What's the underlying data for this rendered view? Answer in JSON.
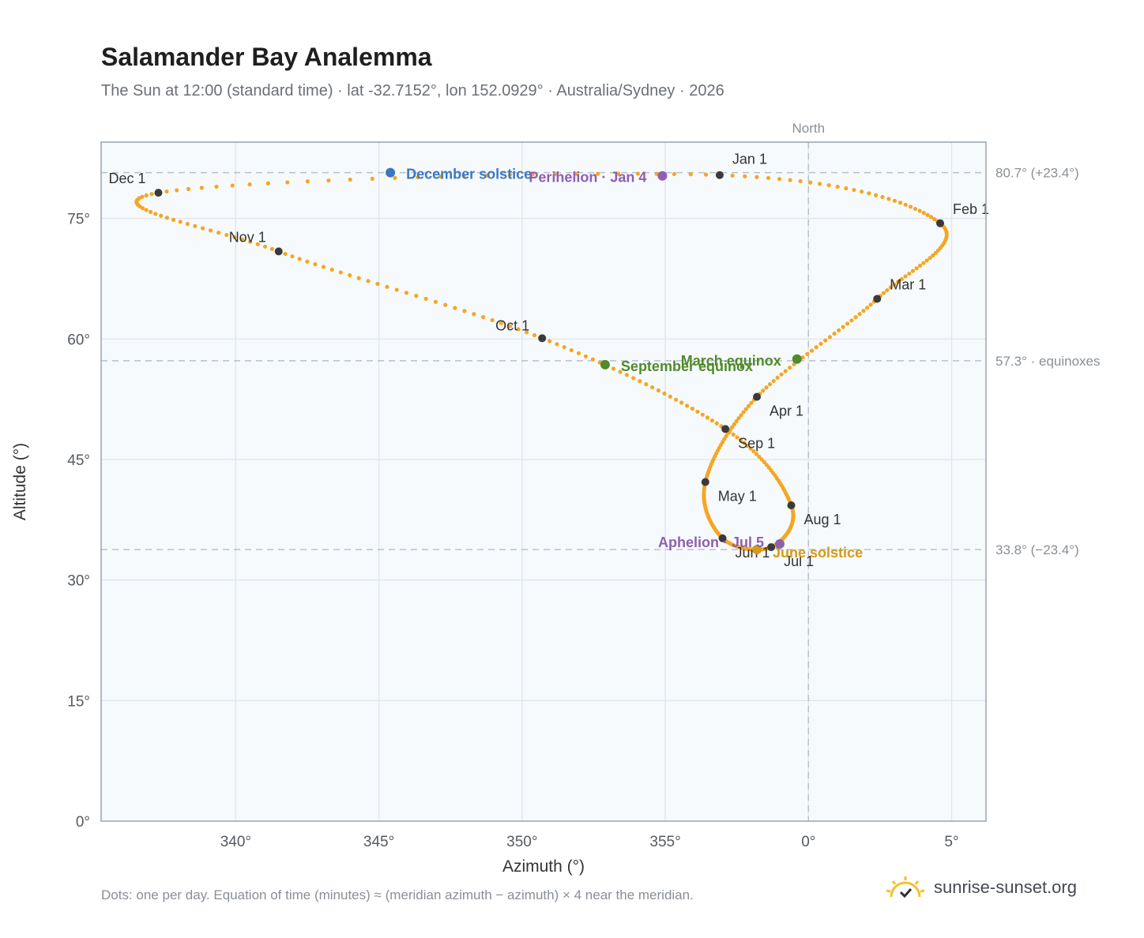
{
  "title": "Salamander Bay Analemma",
  "subtitle": "The Sun at 12:00 (standard time) · lat -32.7152°, lon 152.0929° · Australia/Sydney · 2026",
  "footnote": "Dots: one per day. Equation of time (minutes) ≈ (meridian azimuth − azimuth) × 4 near the meridian.",
  "brand": {
    "name": "sunrise-sunset.org",
    "icon": "sun-logo-icon",
    "color": "#f2c12e"
  },
  "colors": {
    "path": "#f5a623",
    "month_dot": "#3a3a3a",
    "equinox": "#4f8a2b",
    "december_solstice": "#3a78c3",
    "june_solstice": "#d49a1a",
    "perihelion_aphelion": "#8e5fb0",
    "plot_bg": "#f7fafd",
    "grid": "#e1e7ee",
    "ref_line": "#b7c1cb"
  },
  "chart_data": {
    "type": "scatter",
    "xlabel": "Azimuth (°)",
    "ylabel": "Altitude (°)",
    "x_ticks": [
      "340°",
      "345°",
      "350°",
      "355°",
      "0°",
      "5°"
    ],
    "x_tick_values": [
      340,
      345,
      350,
      355,
      360,
      365
    ],
    "y_ticks": [
      "0°",
      "15°",
      "30°",
      "45°",
      "60°",
      "75°"
    ],
    "y_tick_values": [
      0,
      15,
      30,
      45,
      60,
      75
    ],
    "xlim": [
      335.3,
      366.2
    ],
    "ylim": [
      0,
      84.5
    ],
    "grid": true,
    "meridian": {
      "azimuth": 360,
      "label": "North"
    },
    "reference_lines": [
      {
        "altitude": 80.7,
        "label": "80.7° (+23.4°)"
      },
      {
        "altitude": 57.3,
        "label": "57.3° · equinoxes"
      },
      {
        "altitude": 33.8,
        "label": "33.8° (−23.4°)"
      }
    ],
    "month_markers": [
      {
        "label": "Jan 1",
        "az": 356.9,
        "alt": 80.4
      },
      {
        "label": "Feb 1",
        "az": 364.6,
        "alt": 74.4
      },
      {
        "label": "Mar 1",
        "az": 362.4,
        "alt": 65.0
      },
      {
        "label": "Apr 1",
        "az": 358.2,
        "alt": 52.8
      },
      {
        "label": "May 1",
        "az": 356.4,
        "alt": 42.2
      },
      {
        "label": "Jun 1",
        "az": 357.0,
        "alt": 35.2
      },
      {
        "label": "Jul 1",
        "az": 358.7,
        "alt": 34.1
      },
      {
        "label": "Aug 1",
        "az": 359.4,
        "alt": 39.3
      },
      {
        "label": "Sep 1",
        "az": 357.1,
        "alt": 48.8
      },
      {
        "label": "Oct 1",
        "az": 350.7,
        "alt": 60.1
      },
      {
        "label": "Nov 1",
        "az": 341.5,
        "alt": 70.9
      },
      {
        "label": "Dec 1",
        "az": 337.3,
        "alt": 78.2
      }
    ],
    "events": [
      {
        "label": "December solstice",
        "az": 345.4,
        "alt": 80.7,
        "kind": "december_solstice"
      },
      {
        "label": "Perihelion · Jan 4",
        "az": 354.9,
        "alt": 80.3,
        "kind": "perihelion_aphelion"
      },
      {
        "label": "March equinox",
        "az": 359.6,
        "alt": 57.5,
        "kind": "equinox"
      },
      {
        "label": "September equinox",
        "az": 352.9,
        "alt": 56.8,
        "kind": "equinox"
      },
      {
        "label": "June solstice",
        "az": 358.2,
        "alt": 33.8,
        "kind": "june_solstice"
      },
      {
        "label": "Aphelion · Jul 5",
        "az": 359.0,
        "alt": 34.5,
        "kind": "perihelion_aphelion"
      }
    ]
  }
}
